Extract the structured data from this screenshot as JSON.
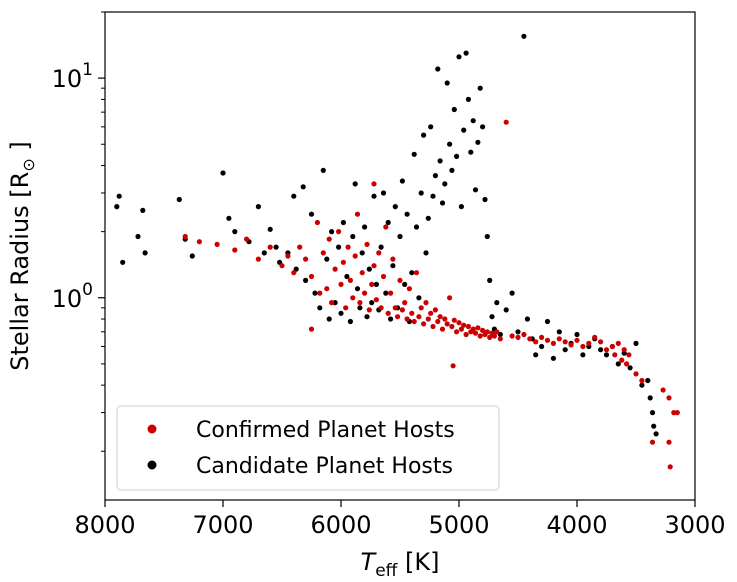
{
  "chart_data": {
    "type": "scatter",
    "title": "",
    "xlabel_main": "T",
    "xlabel_sub": "eff",
    "xlabel_unit": " [K]",
    "ylabel_main": "Stellar Radius [R",
    "ylabel_sun": "⊙",
    "ylabel_end": " ]",
    "x_scale": "linear",
    "y_scale": "log",
    "x_inverted": true,
    "xlim": [
      8000,
      3000
    ],
    "ylim": [
      0.12,
      20
    ],
    "x_ticks": [
      8000,
      7000,
      6000,
      5000,
      4000,
      3000
    ],
    "x_tick_labels": [
      "8000",
      "7000",
      "6000",
      "5000",
      "4000",
      "3000"
    ],
    "y_major_ticks": [
      1,
      10
    ],
    "y_tick_labels": [
      {
        "base": "10",
        "exp": "0"
      },
      {
        "base": "10",
        "exp": "1"
      }
    ],
    "y_minor_ticks": [
      0.2,
      0.3,
      0.4,
      0.5,
      0.6,
      0.7,
      0.8,
      0.9,
      2,
      3,
      4,
      5,
      6,
      7,
      8,
      9,
      20
    ],
    "grid": false,
    "legend_position": "lower-left",
    "series": [
      {
        "name": "Candidate Planet Hosts",
        "color": "#000000",
        "points": [
          [
            7880,
            2.9
          ],
          [
            7900,
            2.6
          ],
          [
            7850,
            1.45
          ],
          [
            7720,
            1.9
          ],
          [
            7680,
            2.5
          ],
          [
            7660,
            1.6
          ],
          [
            7370,
            2.8
          ],
          [
            7320,
            1.85
          ],
          [
            7260,
            1.55
          ],
          [
            7000,
            3.7
          ],
          [
            6950,
            2.3
          ],
          [
            6900,
            2.0
          ],
          [
            6780,
            1.8
          ],
          [
            6700,
            2.6
          ],
          [
            6650,
            1.6
          ],
          [
            6600,
            2.05
          ],
          [
            6550,
            1.7
          ],
          [
            6520,
            1.45
          ],
          [
            6450,
            1.6
          ],
          [
            6400,
            2.9
          ],
          [
            6380,
            1.35
          ],
          [
            6320,
            3.2
          ],
          [
            6300,
            1.2
          ],
          [
            6250,
            2.4
          ],
          [
            6220,
            1.05
          ],
          [
            6180,
            0.9
          ],
          [
            6150,
            3.8
          ],
          [
            6120,
            1.5
          ],
          [
            6100,
            0.8
          ],
          [
            6080,
            2.0
          ],
          [
            6050,
            0.95
          ],
          [
            6020,
            1.7
          ],
          [
            6000,
            0.85
          ],
          [
            5980,
            2.2
          ],
          [
            5950,
            1.25
          ],
          [
            5920,
            0.78
          ],
          [
            5900,
            1.9
          ],
          [
            5880,
            3.3
          ],
          [
            5860,
            1.1
          ],
          [
            5840,
            0.9
          ],
          [
            5820,
            1.6
          ],
          [
            5800,
            2.1
          ],
          [
            5780,
            0.82
          ],
          [
            5760,
            1.35
          ],
          [
            5740,
            0.95
          ],
          [
            5720,
            2.9
          ],
          [
            5700,
            1.15
          ],
          [
            5680,
            0.88
          ],
          [
            5660,
            1.7
          ],
          [
            5640,
            3.0
          ],
          [
            5620,
            1.05
          ],
          [
            5600,
            2.2
          ],
          [
            5580,
            0.8
          ],
          [
            5560,
            1.4
          ],
          [
            5540,
            2.6
          ],
          [
            5520,
            0.9
          ],
          [
            5500,
            1.9
          ],
          [
            5480,
            3.4
          ],
          [
            5460,
            1.15
          ],
          [
            5440,
            2.4
          ],
          [
            5420,
            0.78
          ],
          [
            5400,
            1.3
          ],
          [
            5380,
            4.5
          ],
          [
            5360,
            2.1
          ],
          [
            5340,
            1.0
          ],
          [
            5320,
            3.0
          ],
          [
            5300,
            5.5
          ],
          [
            5280,
            1.6
          ],
          [
            5260,
            2.3
          ],
          [
            5240,
            6.0
          ],
          [
            5220,
            2.9
          ],
          [
            5200,
            3.6
          ],
          [
            5180,
            11.0
          ],
          [
            5160,
            4.2
          ],
          [
            5140,
            2.7
          ],
          [
            5120,
            3.3
          ],
          [
            5100,
            9.5
          ],
          [
            5080,
            5.0
          ],
          [
            5060,
            3.8
          ],
          [
            5040,
            7.2
          ],
          [
            5020,
            4.4
          ],
          [
            5000,
            12.5
          ],
          [
            4980,
            2.6
          ],
          [
            4960,
            5.8
          ],
          [
            4940,
            13.0
          ],
          [
            4920,
            8.0
          ],
          [
            4900,
            4.6
          ],
          [
            4880,
            6.4
          ],
          [
            4860,
            3.1
          ],
          [
            4840,
            5.1
          ],
          [
            4820,
            9.0
          ],
          [
            4800,
            6.0
          ],
          [
            4780,
            2.8
          ],
          [
            4760,
            1.9
          ],
          [
            4740,
            1.2
          ],
          [
            4720,
            0.82
          ],
          [
            4700,
            0.72
          ],
          [
            4680,
            0.95
          ],
          [
            4650,
            0.68
          ],
          [
            4600,
            0.88
          ],
          [
            4550,
            1.05
          ],
          [
            4500,
            0.7
          ],
          [
            4450,
            15.5
          ],
          [
            4420,
            0.8
          ],
          [
            4380,
            0.65
          ],
          [
            4350,
            0.55
          ],
          [
            4300,
            0.6
          ],
          [
            4250,
            0.78
          ],
          [
            4200,
            0.53
          ],
          [
            4150,
            0.7
          ],
          [
            4100,
            0.58
          ],
          [
            4050,
            0.62
          ],
          [
            4000,
            0.68
          ],
          [
            3950,
            0.55
          ],
          [
            3900,
            0.6
          ],
          [
            3850,
            0.65
          ],
          [
            3800,
            0.58
          ],
          [
            3750,
            0.55
          ],
          [
            3700,
            0.6
          ],
          [
            3650,
            0.5
          ],
          [
            3600,
            0.56
          ],
          [
            3550,
            0.48
          ],
          [
            3500,
            0.62
          ],
          [
            3450,
            0.4
          ],
          [
            3400,
            0.42
          ],
          [
            3380,
            0.35
          ],
          [
            3360,
            0.3
          ],
          [
            3350,
            0.26
          ],
          [
            3330,
            0.24
          ]
        ]
      },
      {
        "name": "Confirmed Planet Hosts",
        "color": "#cc0000",
        "points": [
          [
            7320,
            1.9
          ],
          [
            7200,
            1.8
          ],
          [
            7050,
            1.75
          ],
          [
            6900,
            1.65
          ],
          [
            6800,
            1.85
          ],
          [
            6700,
            1.5
          ],
          [
            6600,
            1.7
          ],
          [
            6500,
            1.4
          ],
          [
            6450,
            1.55
          ],
          [
            6400,
            1.3
          ],
          [
            6350,
            1.7
          ],
          [
            6300,
            1.5
          ],
          [
            6250,
            1.25
          ],
          [
            6200,
            2.2
          ],
          [
            6180,
            1.05
          ],
          [
            6150,
            1.6
          ],
          [
            6120,
            1.1
          ],
          [
            6100,
            1.85
          ],
          [
            6080,
            0.95
          ],
          [
            6050,
            1.35
          ],
          [
            6020,
            2.0
          ],
          [
            6000,
            1.15
          ],
          [
            5980,
            1.45
          ],
          [
            5960,
            0.9
          ],
          [
            5940,
            1.7
          ],
          [
            5920,
            1.2
          ],
          [
            5900,
            1.0
          ],
          [
            5880,
            1.55
          ],
          [
            5860,
            2.4
          ],
          [
            5840,
            0.95
          ],
          [
            5820,
            1.3
          ],
          [
            5800,
            1.05
          ],
          [
            5780,
            1.75
          ],
          [
            5760,
            0.88
          ],
          [
            5740,
            1.15
          ],
          [
            5720,
            1.4
          ],
          [
            5700,
            0.98
          ],
          [
            5680,
            1.6
          ],
          [
            5660,
            0.9
          ],
          [
            5640,
            1.25
          ],
          [
            5620,
            2.1
          ],
          [
            5600,
            0.85
          ],
          [
            5580,
            1.05
          ],
          [
            5560,
            1.5
          ],
          [
            5540,
            0.9
          ],
          [
            5520,
            0.82
          ],
          [
            5500,
            1.2
          ],
          [
            5480,
            0.88
          ],
          [
            5460,
            0.95
          ],
          [
            5440,
            0.8
          ],
          [
            5420,
            1.1
          ],
          [
            5400,
            0.85
          ],
          [
            5380,
            0.78
          ],
          [
            5360,
            1.3
          ],
          [
            5340,
            0.82
          ],
          [
            5320,
            0.9
          ],
          [
            5300,
            0.76
          ],
          [
            5280,
            0.95
          ],
          [
            5260,
            0.8
          ],
          [
            5240,
            0.85
          ],
          [
            5220,
            0.74
          ],
          [
            5200,
            0.88
          ],
          [
            5180,
            0.78
          ],
          [
            5160,
            0.82
          ],
          [
            5140,
            0.72
          ],
          [
            5120,
            0.8
          ],
          [
            5100,
            0.76
          ],
          [
            5080,
            1.0
          ],
          [
            5060,
            0.74
          ],
          [
            5040,
            0.79
          ],
          [
            5020,
            0.7
          ],
          [
            5000,
            0.77
          ],
          [
            4980,
            0.72
          ],
          [
            4960,
            0.75
          ],
          [
            4940,
            0.68
          ],
          [
            4920,
            0.74
          ],
          [
            4900,
            0.7
          ],
          [
            4880,
            0.72
          ],
          [
            4860,
            0.69
          ],
          [
            4840,
            0.73
          ],
          [
            4820,
            0.67
          ],
          [
            4800,
            0.71
          ],
          [
            4780,
            0.68
          ],
          [
            4760,
            0.7
          ],
          [
            4740,
            0.66
          ],
          [
            4720,
            0.69
          ],
          [
            4700,
            0.67
          ],
          [
            4680,
            0.7
          ],
          [
            4650,
            0.65
          ],
          [
            4600,
            6.3
          ],
          [
            4550,
            0.67
          ],
          [
            4500,
            0.66
          ],
          [
            4450,
            0.68
          ],
          [
            4400,
            0.65
          ],
          [
            4350,
            0.63
          ],
          [
            4300,
            0.66
          ],
          [
            4250,
            0.64
          ],
          [
            4200,
            0.62
          ],
          [
            4150,
            0.65
          ],
          [
            4100,
            0.63
          ],
          [
            4050,
            0.61
          ],
          [
            4000,
            0.64
          ],
          [
            3950,
            0.6
          ],
          [
            3900,
            0.62
          ],
          [
            3850,
            0.66
          ],
          [
            3800,
            0.63
          ],
          [
            3750,
            0.58
          ],
          [
            3700,
            0.6
          ],
          [
            3680,
            0.55
          ],
          [
            3650,
            0.62
          ],
          [
            3620,
            0.52
          ],
          [
            3600,
            0.58
          ],
          [
            3580,
            0.5
          ],
          [
            3560,
            0.55
          ],
          [
            5050,
            0.49
          ],
          [
            5720,
            3.3
          ],
          [
            6250,
            0.72
          ],
          [
            3270,
            0.38
          ],
          [
            3220,
            0.35
          ],
          [
            3180,
            0.3
          ],
          [
            3360,
            0.22
          ],
          [
            3220,
            0.22
          ],
          [
            3210,
            0.17
          ],
          [
            3150,
            0.3
          ],
          [
            3500,
            0.45
          ],
          [
            3450,
            0.42
          ]
        ]
      }
    ]
  },
  "legend": {
    "confirmed_label": "Confirmed Planet Hosts",
    "candidate_label": "Candidate Planet Hosts"
  }
}
